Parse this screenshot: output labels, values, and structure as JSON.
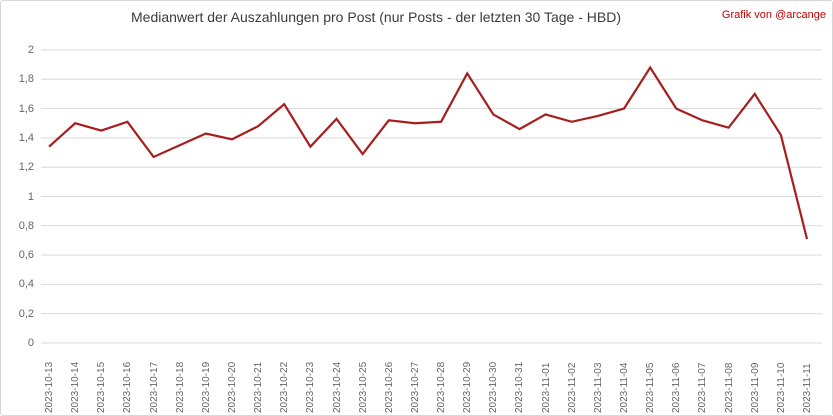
{
  "header": {
    "title": "Medianwert der Auszahlungen pro Post (nur Posts - der letzten 30 Tage - HBD)",
    "credit": "Grafik von @arcange"
  },
  "chart_data": {
    "type": "line",
    "title": "Medianwert der Auszahlungen pro Post (nur Posts - der letzten 30 Tage - HBD)",
    "xlabel": "",
    "ylabel": "",
    "x": [
      "2023-10-13",
      "2023-10-14",
      "2023-10-15",
      "2023-10-16",
      "2023-10-17",
      "2023-10-18",
      "2023-10-19",
      "2023-10-20",
      "2023-10-21",
      "2023-10-22",
      "2023-10-23",
      "2023-10-24",
      "2023-10-25",
      "2023-10-26",
      "2023-10-27",
      "2023-10-28",
      "2023-10-29",
      "2023-10-30",
      "2023-10-31",
      "2023-11-01",
      "2023-11-02",
      "2023-11-03",
      "2023-11-04",
      "2023-11-05",
      "2023-11-06",
      "2023-11-07",
      "2023-11-08",
      "2023-11-09",
      "2023-11-10",
      "2023-11-11"
    ],
    "values": [
      1.34,
      1.5,
      1.45,
      1.51,
      1.27,
      1.35,
      1.43,
      1.39,
      1.48,
      1.63,
      1.34,
      1.53,
      1.29,
      1.52,
      1.5,
      1.51,
      1.84,
      1.56,
      1.46,
      1.56,
      1.51,
      1.55,
      1.6,
      1.88,
      1.6,
      1.52,
      1.47,
      1.7,
      1.42,
      0.71
    ],
    "ylim": [
      0,
      2
    ],
    "ytick_step": 0.2,
    "ytick_labels_bottom_to_top": [
      "0",
      "0,2",
      "0,4",
      "0,6",
      "0,8",
      "1",
      "1,2",
      "1,4",
      "1,6",
      "1,8",
      "2"
    ],
    "grid": true,
    "legend": false,
    "colors": {
      "line": "#a61e1e",
      "grid": "#d9d9d9",
      "axis_labels": "#666666",
      "title": "#3b3b3b",
      "credit": "#c00000",
      "background": "#ffffff"
    }
  }
}
